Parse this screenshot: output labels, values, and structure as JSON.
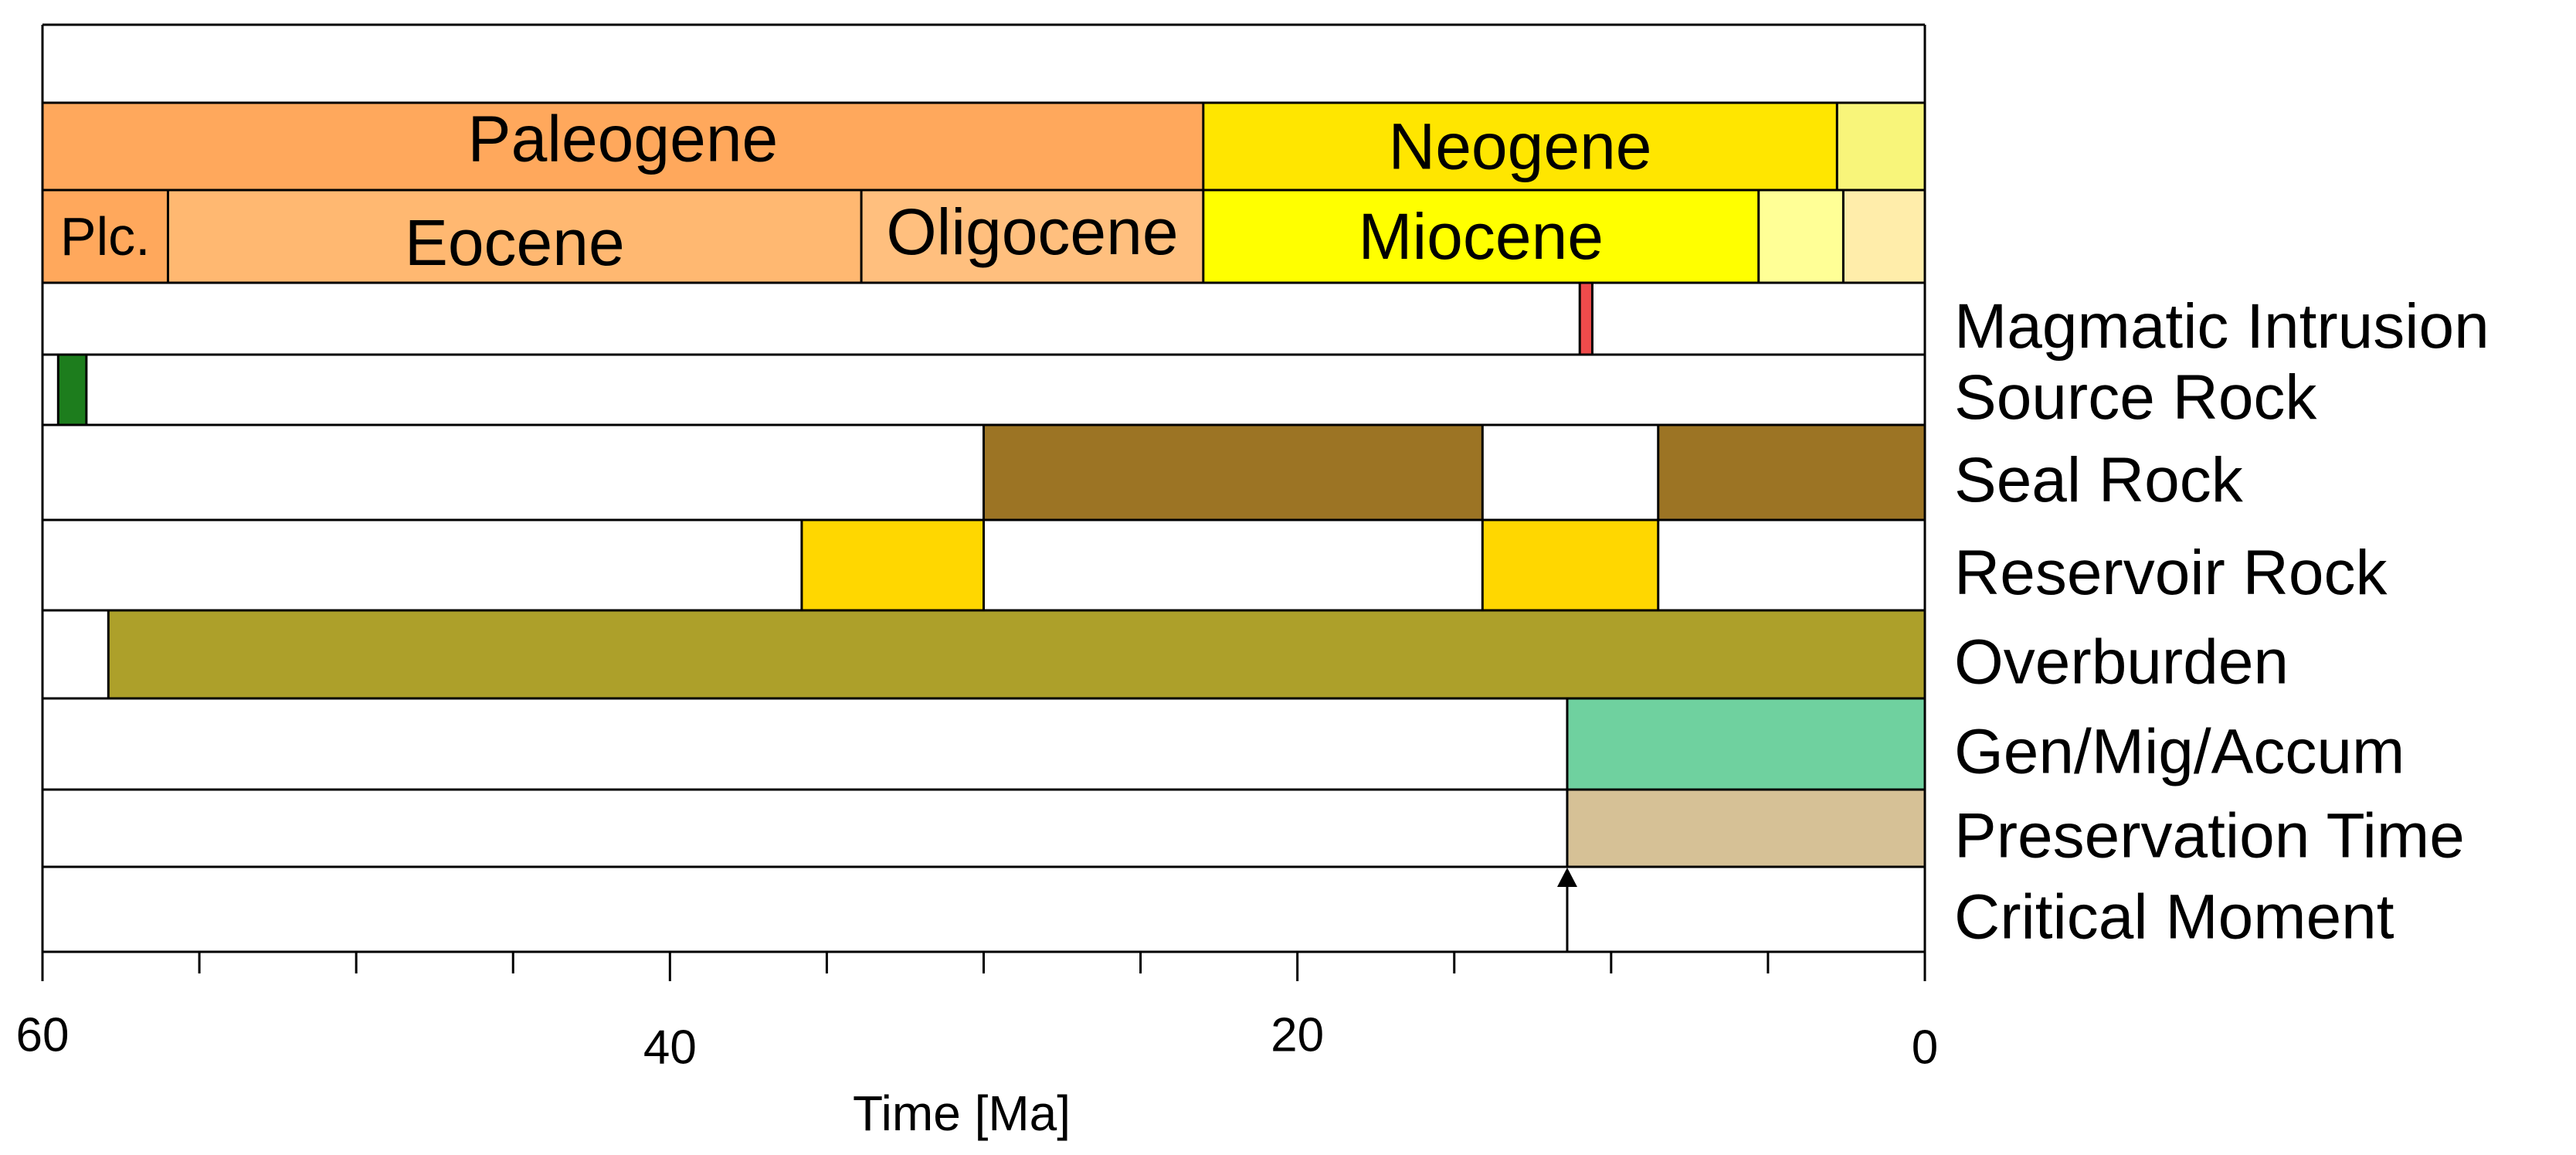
{
  "chart_data": {
    "type": "timeline",
    "title": "",
    "xlabel": "Time [Ma]",
    "xlim": [
      60,
      0
    ],
    "ticks_major": [
      60,
      40,
      20,
      0
    ],
    "ticks_minor": [
      55,
      50,
      45,
      35,
      30,
      25,
      15,
      10,
      5
    ],
    "periods": [
      {
        "label": "Paleogene",
        "start": 60,
        "end": 23,
        "color": "#FFA85C"
      },
      {
        "label": "Neogene",
        "start": 23,
        "end": 2.8,
        "color": "#FFE600"
      },
      {
        "label": "",
        "start": 2.8,
        "end": 0,
        "color": "#F8F57A"
      }
    ],
    "epochs": [
      {
        "label": "Plc.",
        "start": 60,
        "end": 56,
        "color": "#FFA85C"
      },
      {
        "label": "Eocene",
        "start": 56,
        "end": 33.9,
        "color": "#FFB871"
      },
      {
        "label": "Oligocene",
        "start": 33.9,
        "end": 23,
        "color": "#FFBF7E"
      },
      {
        "label": "Miocene",
        "start": 23,
        "end": 5.3,
        "color": "#FFFF00"
      },
      {
        "label": "",
        "start": 5.3,
        "end": 2.6,
        "color": "#FFFF96"
      },
      {
        "label": "",
        "start": 2.6,
        "end": 0,
        "color": "#FFEDAA"
      }
    ],
    "rows": [
      {
        "label": "Magmatic Intrusion",
        "segments": [
          {
            "start": 11.0,
            "end": 10.6,
            "color": "#EF4B4B"
          }
        ]
      },
      {
        "label": "Source Rock",
        "segments": [
          {
            "start": 59.5,
            "end": 58.6,
            "color": "#1D7D1D"
          }
        ]
      },
      {
        "label": "Seal Rock",
        "segments": [
          {
            "start": 30,
            "end": 14.1,
            "color": "#9C7424"
          },
          {
            "start": 8.5,
            "end": 0,
            "color": "#9C7424"
          }
        ]
      },
      {
        "label": "Reservoir Rock",
        "segments": [
          {
            "start": 35.8,
            "end": 30,
            "color": "#FFD700"
          },
          {
            "start": 14.1,
            "end": 8.5,
            "color": "#FFD700"
          }
        ]
      },
      {
        "label": "Overburden",
        "segments": [
          {
            "start": 57.9,
            "end": 0,
            "color": "#ADA02A"
          }
        ]
      },
      {
        "label": "Gen/Mig/Accum",
        "segments": [
          {
            "start": 11.4,
            "end": 0,
            "color": "#6FD19F"
          }
        ]
      },
      {
        "label": "Preservation Time",
        "segments": [
          {
            "start": 11.4,
            "end": 0,
            "color": "#D6C196"
          }
        ]
      },
      {
        "label": "Critical Moment",
        "segments": [],
        "marker": 11.4
      }
    ]
  }
}
